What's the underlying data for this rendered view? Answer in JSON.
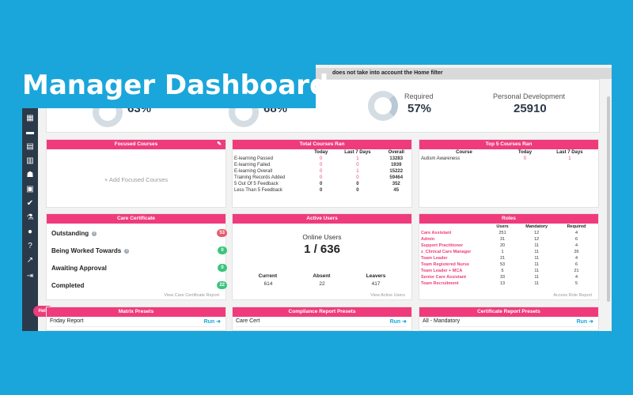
{
  "page_title": "Manager Dashboard",
  "banner_text": "does not take into account the Home filter",
  "stats": {
    "stat1_pct": "63%",
    "stat2_pct": "68%",
    "required_label": "Required",
    "required_pct": "57%",
    "personal_dev_label": "Personal Development",
    "personal_dev_value": "25910"
  },
  "sidebar_icons": [
    "calendar-icon",
    "folder-icon",
    "clipboard-icon",
    "chart-icon",
    "users-icon",
    "book-icon",
    "check-circle-icon",
    "flask-icon",
    "user-circle-icon",
    "question-icon",
    "trend-icon",
    "logout-icon"
  ],
  "help_label": "Help",
  "focused_courses": {
    "title": "Focused Courses",
    "add_label": "+ Add Focused Courses"
  },
  "total_courses": {
    "title": "Total Courses Ran",
    "columns": [
      "",
      "Today",
      "Last 7 Days",
      "Overall"
    ],
    "rows": [
      {
        "label": "E-learning Passed",
        "today": "0",
        "last7": "1",
        "overall": "13283"
      },
      {
        "label": "E-learning Failed",
        "today": "0",
        "last7": "0",
        "overall": "1939"
      },
      {
        "label": "E-learning Overall",
        "today": "0",
        "last7": "1",
        "overall": "15222"
      },
      {
        "label": "Training Records Added",
        "today": "0",
        "last7": "0",
        "overall": "59464"
      },
      {
        "label": "5 Out Of 5 Feedback",
        "today": "0",
        "last7": "0",
        "overall": "352"
      },
      {
        "label": "Less Than 5 Feedback",
        "today": "0",
        "last7": "0",
        "overall": "45"
      }
    ]
  },
  "top5": {
    "title": "Top 5 Courses Ran",
    "columns": [
      "Course",
      "Today",
      "Last 7 Days"
    ],
    "rows": [
      {
        "course": "Autism Awareness",
        "today": "0",
        "last7": "1"
      }
    ]
  },
  "care_certificate": {
    "title": "Care Certificate",
    "items": [
      {
        "label": "Outstanding",
        "count": "53"
      },
      {
        "label": "Being Worked Towards",
        "count": "0"
      },
      {
        "label": "Awaiting Approval",
        "count": "0"
      },
      {
        "label": "Completed",
        "count": "22"
      }
    ],
    "footer": "View Care Certificate Report"
  },
  "active_users": {
    "title": "Active Users",
    "online_label": "Online Users",
    "online_value": "1 / 636",
    "columns": [
      "Current",
      "Absent",
      "Leavers"
    ],
    "values": [
      "614",
      "22",
      "417"
    ],
    "footer": "View Active Users"
  },
  "roles": {
    "title": "Roles",
    "columns": [
      "",
      "Users",
      "Mandatory",
      "Required"
    ],
    "rows": [
      {
        "name": "Care Assistant",
        "users": "251",
        "mandatory": "12",
        "required": "4"
      },
      {
        "name": "Admin",
        "users": "31",
        "mandatory": "12",
        "required": "6"
      },
      {
        "name": "Support Practitioner",
        "users": "20",
        "mandatory": "11",
        "required": "4"
      },
      {
        "name": "z_Clinical Care Manager",
        "users": "1",
        "mandatory": "11",
        "required": "26"
      },
      {
        "name": "Team Leader",
        "users": "21",
        "mandatory": "11",
        "required": "4"
      },
      {
        "name": "Team Registered Nurse",
        "users": "53",
        "mandatory": "11",
        "required": "6"
      },
      {
        "name": "Team Leader + MCA",
        "users": "5",
        "mandatory": "11",
        "required": "21"
      },
      {
        "name": "Senior Care Assistant",
        "users": "33",
        "mandatory": "11",
        "required": "4"
      },
      {
        "name": "Team Recruitment",
        "users": "13",
        "mandatory": "11",
        "required": "5"
      }
    ],
    "footer": "Access Role Report"
  },
  "matrix_presets": {
    "title": "Matrix Presets",
    "item": "Friday Report",
    "run_label": "Run ➜"
  },
  "compliance_presets": {
    "title": "Compliance Report Presets",
    "item": "Care Cert",
    "run_label": "Run ➜"
  },
  "certificate_presets": {
    "title": "Certificate Report Presets",
    "item": "All - Mandatory",
    "run_label": "Run ➜"
  },
  "colors": {
    "accent": "#ef3b7b",
    "background": "#1aa6da",
    "sidebar": "#2b3a4a",
    "green": "#3cc47c"
  }
}
